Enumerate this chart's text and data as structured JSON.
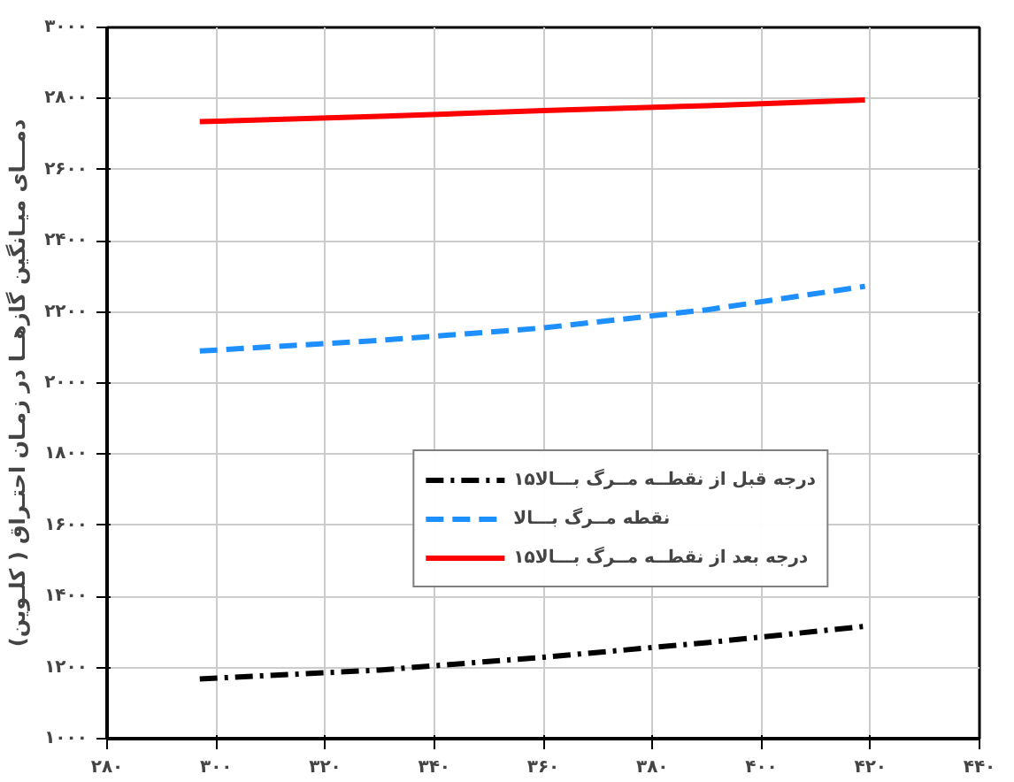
{
  "chart_data": {
    "type": "line",
    "ylabel": "دمـــای میـانگین گازهــا در زمـان احتـراق ( کلـوین)",
    "x": [
      297,
      330,
      360,
      390,
      419
    ],
    "series": [
      {
        "name": "۱۵درجه قبل از نقطــه مــرگ بـــالا",
        "color": "#000000",
        "line_style": "dashdot",
        "values": [
          1168,
          1193,
          1229,
          1270,
          1316
        ]
      },
      {
        "name": "نقطه مــرگ بـــالا",
        "color": "#1e8fff",
        "line_style": "dashed",
        "values": [
          2090,
          2120,
          2155,
          2206,
          2272
        ]
      },
      {
        "name": "۱۵درجه بعد از نقطــه مــرگ بـــالا",
        "color": "#ff0000",
        "line_style": "solid",
        "values": [
          2735,
          2750,
          2766,
          2780,
          2796
        ]
      }
    ],
    "xlim": [
      280,
      440
    ],
    "ylim": [
      1000,
      3000
    ],
    "xticks": [
      {
        "value": 280,
        "label": "۲۸۰"
      },
      {
        "value": 300,
        "label": "۳۰۰"
      },
      {
        "value": 320,
        "label": "۳۲۰"
      },
      {
        "value": 340,
        "label": "۳۴۰"
      },
      {
        "value": 360,
        "label": "۳۶۰"
      },
      {
        "value": 380,
        "label": "۳۸۰"
      },
      {
        "value": 400,
        "label": "۴۰۰"
      },
      {
        "value": 420,
        "label": "۴۲۰"
      },
      {
        "value": 440,
        "label": "۴۴۰"
      }
    ],
    "yticks": [
      {
        "value": 1000,
        "label": "۱۰۰۰"
      },
      {
        "value": 1200,
        "label": "۱۲۰۰"
      },
      {
        "value": 1400,
        "label": "۱۴۰۰"
      },
      {
        "value": 1600,
        "label": "۱۶۰۰"
      },
      {
        "value": 1800,
        "label": "۱۸۰۰"
      },
      {
        "value": 2000,
        "label": "۲۰۰۰"
      },
      {
        "value": 2200,
        "label": "۲۲۰۰"
      },
      {
        "value": 2400,
        "label": "۲۴۰۰"
      },
      {
        "value": 2600,
        "label": "۲۶۰۰"
      },
      {
        "value": 2800,
        "label": "۲۸۰۰"
      },
      {
        "value": 3000,
        "label": "۳۰۰۰"
      }
    ],
    "grid": true,
    "legend": "right",
    "marker": "none"
  }
}
